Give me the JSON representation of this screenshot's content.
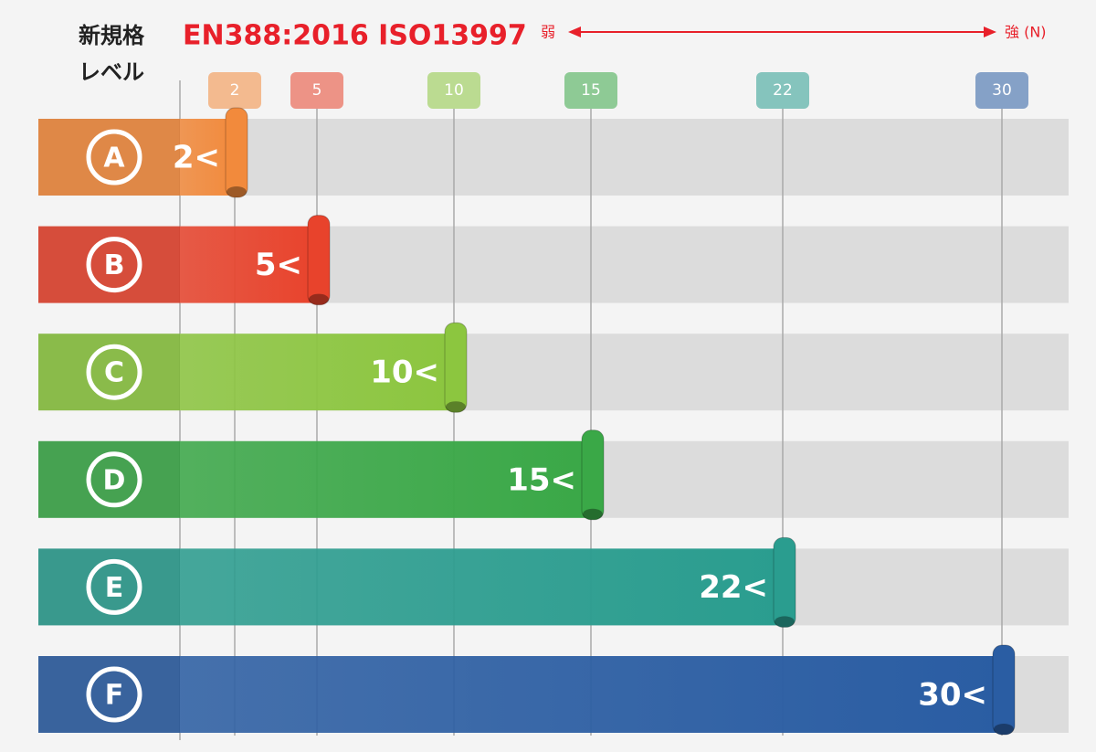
{
  "chart_data": {
    "type": "bar",
    "orientation": "horizontal",
    "header_line1": "新規格",
    "header_line2": "レベル",
    "title": "EN388:2016 ISO13997",
    "weak_label": "弱",
    "strong_label": "強 (N)",
    "categories": [
      "A",
      "B",
      "C",
      "D",
      "E",
      "F"
    ],
    "values": [
      2,
      5,
      10,
      15,
      22,
      30
    ],
    "value_labels": [
      "2<",
      "5<",
      "10<",
      "15<",
      "22<",
      "30<"
    ],
    "colors": [
      "#f28a3c",
      "#e8432c",
      "#8cc63f",
      "#3aa847",
      "#2a9d8f",
      "#2a5da3"
    ],
    "xlim": [
      0,
      30
    ],
    "xticks": [
      2,
      5,
      10,
      15,
      22,
      30
    ],
    "grid": true
  }
}
